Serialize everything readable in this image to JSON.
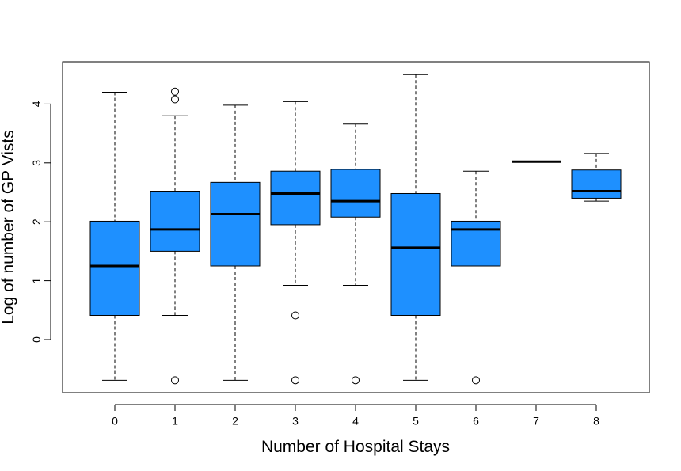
{
  "chart_data": {
    "type": "boxplot",
    "xlabel": "Number of Hospital Stays",
    "ylabel": "Log of number of GP Vists",
    "ylim": [
      -0.9,
      4.6
    ],
    "yticks": [
      "0",
      "1",
      "2",
      "3",
      "4"
    ],
    "box_color": "#1E90FF",
    "categories": [
      "0",
      "1",
      "2",
      "3",
      "4",
      "5",
      "6",
      "7",
      "8"
    ],
    "boxes": [
      {
        "category": "0",
        "low": -0.69,
        "q1": 0.41,
        "median": 1.25,
        "q3": 2.01,
        "high": 4.2,
        "outliers": []
      },
      {
        "category": "1",
        "low": 0.41,
        "q1": 1.5,
        "median": 1.87,
        "q3": 2.52,
        "high": 3.8,
        "outliers": [
          4.08,
          4.21,
          -0.69
        ]
      },
      {
        "category": "2",
        "low": -0.69,
        "q1": 1.25,
        "median": 2.13,
        "q3": 2.67,
        "high": 3.98,
        "outliers": []
      },
      {
        "category": "3",
        "low": 0.92,
        "q1": 1.95,
        "median": 2.48,
        "q3": 2.86,
        "high": 4.04,
        "outliers": [
          0.41,
          -0.69
        ]
      },
      {
        "category": "4",
        "low": 0.92,
        "q1": 2.08,
        "median": 2.35,
        "q3": 2.89,
        "high": 3.66,
        "outliers": [
          -0.69
        ]
      },
      {
        "category": "5",
        "low": -0.69,
        "q1": 0.41,
        "median": 1.56,
        "q3": 2.48,
        "high": 4.5,
        "outliers": []
      },
      {
        "category": "6",
        "low": 1.25,
        "q1": 1.25,
        "median": 1.87,
        "q3": 2.01,
        "high": 2.86,
        "outliers": [
          -0.69
        ]
      },
      {
        "category": "7",
        "low": 3.02,
        "q1": 3.02,
        "median": 3.02,
        "q3": 3.02,
        "high": 3.02,
        "outliers": []
      },
      {
        "category": "8",
        "low": 2.35,
        "q1": 2.4,
        "median": 2.52,
        "q3": 2.88,
        "high": 3.16,
        "outliers": []
      }
    ]
  }
}
